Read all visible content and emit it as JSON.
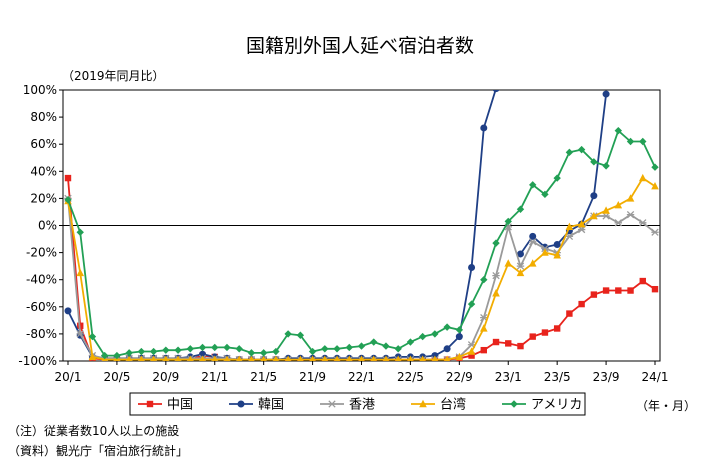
{
  "chart_data": {
    "type": "line",
    "title": "国籍別外国人延べ宿泊者数",
    "y_unit_label": "（2019年同月比）",
    "x_unit_label": "（年・月）",
    "ylim": [
      -100,
      100
    ],
    "y_ticks": [
      -100,
      -80,
      -60,
      -40,
      -20,
      0,
      20,
      40,
      60,
      80,
      100
    ],
    "y_tick_labels": [
      "-100%",
      "-80%",
      "-60%",
      "-40%",
      "-20%",
      "0%",
      "20%",
      "40%",
      "60%",
      "80%",
      "100%"
    ],
    "x_ticks": [
      {
        "index": 0,
        "label": "20/1"
      },
      {
        "index": 4,
        "label": "20/5"
      },
      {
        "index": 8,
        "label": "20/9"
      },
      {
        "index": 12,
        "label": "21/1"
      },
      {
        "index": 16,
        "label": "21/5"
      },
      {
        "index": 20,
        "label": "21/9"
      },
      {
        "index": 24,
        "label": "22/1"
      },
      {
        "index": 28,
        "label": "22/5"
      },
      {
        "index": 32,
        "label": "22/9"
      },
      {
        "index": 36,
        "label": "23/1"
      },
      {
        "index": 40,
        "label": "23/5"
      },
      {
        "index": 44,
        "label": "23/9"
      },
      {
        "index": 48,
        "label": "24/1"
      }
    ],
    "grid": false,
    "legend_position": "bottom",
    "series": [
      {
        "name": "中国",
        "color": "#e8231c",
        "marker": "square",
        "values": [
          35,
          -74,
          -98,
          -99,
          -99,
          -99,
          -99,
          -99,
          -99,
          -99,
          -99,
          -96,
          -97,
          -99,
          -99,
          -99,
          -99,
          -99,
          -99,
          -99,
          -99,
          -99,
          -99,
          -99,
          -99,
          -99,
          -99,
          -99,
          -99,
          -99,
          -99,
          -99,
          -98,
          -96,
          -92,
          -86,
          -87,
          -89,
          -82,
          -79,
          -76,
          -65,
          -58,
          -51,
          -48,
          -48,
          -48,
          -41,
          -47
        ]
      },
      {
        "name": "韓国",
        "color": "#1f3f86",
        "marker": "circle",
        "values": [
          -63,
          -81,
          -97,
          -98,
          -98,
          -98,
          -98,
          -98,
          -98,
          -98,
          -97,
          -95,
          -97,
          -98,
          -99,
          -99,
          -99,
          -99,
          -98,
          -98,
          -98,
          -98,
          -98,
          -98,
          -98,
          -98,
          -98,
          -97,
          -97,
          -97,
          -96,
          -91,
          -82,
          -31,
          72,
          101,
          null,
          -21,
          -8,
          -16,
          -14,
          -4,
          1,
          22,
          97,
          null,
          null,
          null,
          null
        ]
      },
      {
        "name": "香港",
        "color": "#9a9a9a",
        "marker": "asterisk",
        "values": [
          20,
          -80,
          -96,
          -98,
          -98,
          -98,
          -98,
          -98,
          -98,
          -98,
          -98,
          -98,
          -98,
          -98,
          -99,
          -99,
          -99,
          -99,
          -99,
          -99,
          -99,
          -99,
          -99,
          -99,
          -99,
          -99,
          -99,
          -99,
          -99,
          -99,
          -99,
          -99,
          -97,
          -88,
          -68,
          -37,
          -1,
          -30,
          -12,
          -17,
          -20,
          -8,
          -3,
          7,
          7,
          2,
          8,
          2,
          -5
        ]
      },
      {
        "name": "台湾",
        "color": "#f2ad00",
        "marker": "triangle",
        "values": [
          18,
          -35,
          -97,
          -99,
          -99,
          -99,
          -99,
          -99,
          -99,
          -99,
          -99,
          -99,
          -99,
          -99,
          -99,
          -99,
          -99,
          -99,
          -99,
          -99,
          -99,
          -99,
          -99,
          -99,
          -99,
          -99,
          -99,
          -99,
          -99,
          -99,
          -99,
          -99,
          -97,
          -93,
          -76,
          -50,
          -28,
          -35,
          -28,
          -20,
          -22,
          -1,
          1,
          7,
          11,
          15,
          20,
          35,
          29
        ]
      },
      {
        "name": "アメリカ",
        "color": "#22a055",
        "marker": "diamond",
        "values": [
          19,
          -5,
          -82,
          -96,
          -96,
          -94,
          -93,
          -93,
          -92,
          -92,
          -91,
          -90,
          -90,
          -90,
          -91,
          -94,
          -94,
          -93,
          -80,
          -81,
          -93,
          -91,
          -91,
          -90,
          -89,
          -86,
          -89,
          -91,
          -86,
          -82,
          -80,
          -75,
          -77,
          -58,
          -40,
          -13,
          3,
          12,
          30,
          23,
          35,
          54,
          56,
          47,
          44,
          70,
          62,
          62,
          43
        ]
      }
    ]
  },
  "notes": [
    "（注）従業者数10人以上の施設",
    "（資料）観光庁「宿泊旅行統計」"
  ]
}
